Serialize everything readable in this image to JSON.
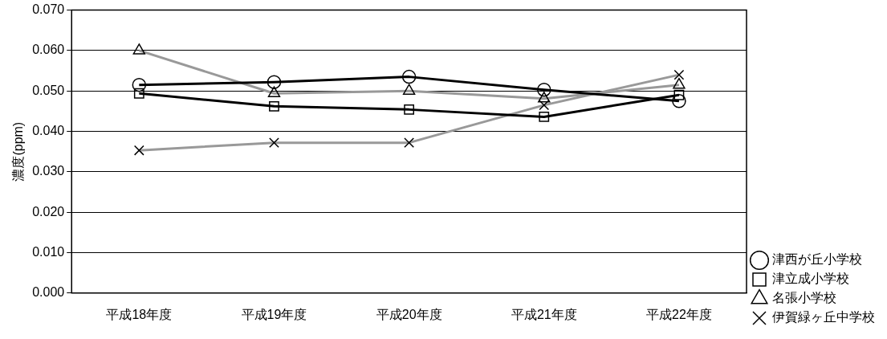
{
  "chart_data": {
    "type": "line",
    "ylabel": "濃度(ppm)",
    "categories": [
      "平成18年度",
      "平成19年度",
      "平成20年度",
      "平成21年度",
      "平成22年度"
    ],
    "series": [
      {
        "name": "津西が丘小学校",
        "color": "#000000",
        "marker": "circle",
        "values": [
          0.0515,
          0.0522,
          0.0535,
          0.0503,
          0.0475
        ]
      },
      {
        "name": "津立成小学校",
        "color": "#000000",
        "marker": "square",
        "values": [
          0.0494,
          0.0462,
          0.0454,
          0.0436,
          0.049
        ]
      },
      {
        "name": "名張小学校",
        "color": "#999999",
        "marker": "triangle",
        "values": [
          0.06,
          0.0494,
          0.05,
          0.0481,
          0.0515
        ]
      },
      {
        "name": "伊賀緑ヶ丘中学校",
        "color": "#999999",
        "marker": "cross",
        "values": [
          0.0353,
          0.0372,
          0.0372,
          0.0465,
          0.054
        ]
      }
    ],
    "ylim": [
      0,
      0.07
    ],
    "yticks": [
      {
        "value": 0,
        "label": "0.000"
      },
      {
        "value": 0.01,
        "label": "0.010"
      },
      {
        "value": 0.02,
        "label": "0.020"
      },
      {
        "value": 0.03,
        "label": "0.030"
      },
      {
        "value": 0.04,
        "label": "0.040"
      },
      {
        "value": 0.05,
        "label": "0.050"
      },
      {
        "value": 0.06,
        "label": "0.060"
      },
      {
        "value": 0.07,
        "label": "0.070"
      }
    ],
    "grid": "y",
    "legend": "right",
    "line_style": "solid"
  }
}
